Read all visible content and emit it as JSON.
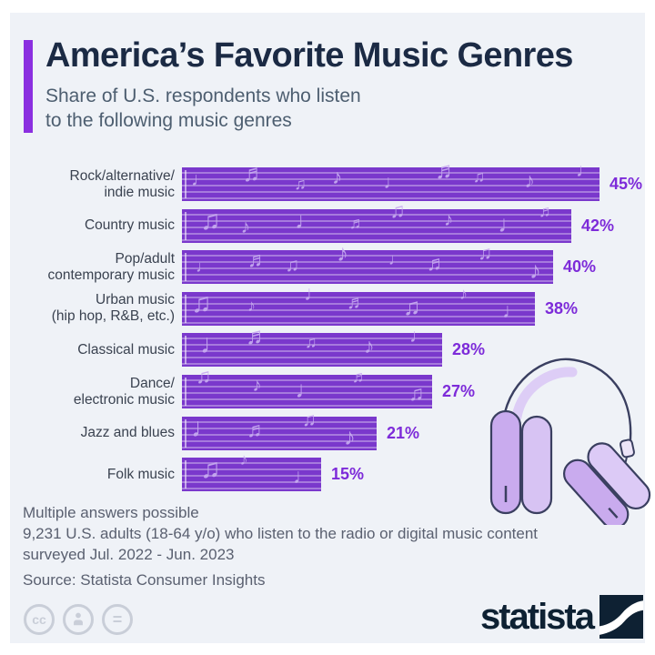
{
  "header": {
    "title": "America’s Favorite Music Genres",
    "subtitle": "Share of U.S. respondents who listen\nto the following music genres",
    "accent_color": "#8b2fe0"
  },
  "chart_data": {
    "type": "bar",
    "orientation": "horizontal",
    "title": "America’s Favorite Music Genres",
    "categories": [
      "Rock/alternative/\nindie music",
      "Country music",
      "Pop/adult\ncontemporary music",
      "Urban music\n(hip hop, R&B, etc.)",
      "Classical music",
      "Dance/\nelectronic music",
      "Jazz and blues",
      "Folk music"
    ],
    "values": [
      45,
      42,
      40,
      38,
      28,
      27,
      21,
      15
    ],
    "value_suffix": "%",
    "xlim": [
      0,
      45
    ],
    "bar_color": "#7a38cc",
    "value_label_color": "#7d2bd9",
    "decor": {
      "style": "music-staff",
      "staff_lines": 5,
      "glyphs": [
        "♩",
        "♪",
        "♫",
        "♬"
      ],
      "note_color": "#c7abf0"
    }
  },
  "footer": {
    "note_lines": [
      "Multiple answers possible",
      "9,231 U.S. adults (18-64 y/o) who listen to the radio or digital music content",
      "surveyed Jul. 2022 - Jun. 2023"
    ],
    "source": "Source: Statista Consumer Insights"
  },
  "branding": {
    "logo_text": "statista",
    "logo_color": "#0e2133",
    "license_icons": [
      "cc-icon",
      "attribution-person-icon",
      "equals-icon"
    ]
  }
}
